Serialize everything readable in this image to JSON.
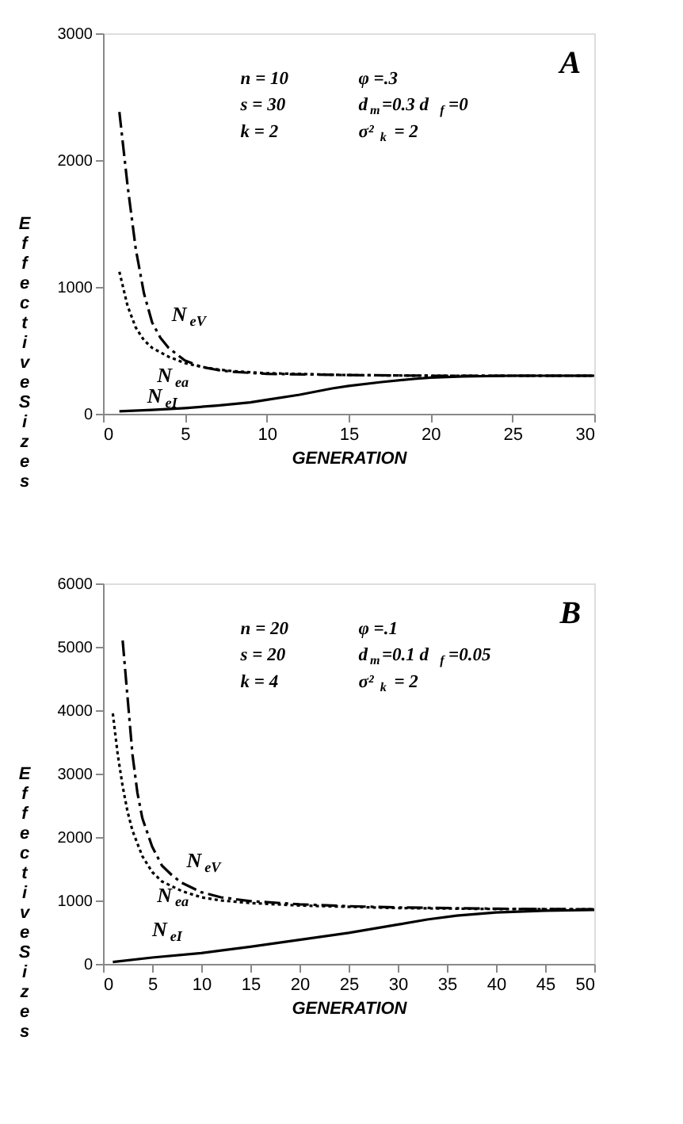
{
  "chart_data": [
    {
      "type": "line",
      "xlabel": "GENERATION",
      "ylabel": "Effective Sizes",
      "xlim": [
        0,
        30
      ],
      "xticks": [
        0,
        5,
        10,
        15,
        20,
        25,
        30
      ],
      "ylim": [
        0,
        3000
      ],
      "yticks": [
        0,
        1000,
        2000,
        3000
      ],
      "grid": false,
      "annotations": [
        "A",
        "n = 10",
        "φ =.3",
        "s = 30",
        "d$_{m}$=0.3  d$_{f}$=0",
        "k = 2",
        "σ²$_{k}$ = 2"
      ],
      "series": [
        {
          "name": "N$_{eV}$",
          "color": "#000000",
          "line_style": "dashed",
          "x": [
            1,
            1.5,
            2,
            2.5,
            3,
            3.5,
            4,
            5,
            6,
            7,
            8,
            10,
            15,
            20,
            25,
            30
          ],
          "values": [
            2380,
            1800,
            1300,
            950,
            720,
            600,
            520,
            420,
            370,
            345,
            330,
            315,
            305,
            300,
            300,
            300
          ]
        },
        {
          "name": "N$_{ea}$",
          "color": "#000000",
          "line_style": "dotted",
          "x": [
            1,
            1.5,
            2,
            2.5,
            3,
            4,
            5,
            6,
            7,
            8,
            10,
            15,
            20,
            30
          ],
          "values": [
            1120,
            850,
            680,
            580,
            520,
            450,
            400,
            370,
            350,
            335,
            320,
            305,
            300,
            300
          ]
        },
        {
          "name": "N$_{eI}$",
          "color": "#000000",
          "line_style": "solid",
          "x": [
            1,
            3,
            5,
            7,
            9,
            10,
            12,
            14,
            15,
            17,
            19,
            20,
            22,
            25,
            30
          ],
          "values": [
            20,
            30,
            45,
            65,
            90,
            110,
            150,
            200,
            220,
            250,
            275,
            285,
            295,
            300,
            300
          ]
        }
      ]
    },
    {
      "type": "line",
      "xlabel": "GENERATION",
      "ylabel": "Effective Sizes",
      "xlim": [
        0,
        50
      ],
      "xticks": [
        0,
        5,
        10,
        15,
        20,
        25,
        30,
        35,
        40,
        45,
        50
      ],
      "ylim": [
        0,
        6000
      ],
      "yticks": [
        0,
        1000,
        2000,
        3000,
        4000,
        5000,
        6000
      ],
      "grid": false,
      "annotations": [
        "B",
        "n = 20",
        "φ =.1",
        "s = 20",
        "d$_{m}$=0.1  d$_{f}$=0.05",
        "k = 4",
        "σ²$_{k}$ = 2"
      ],
      "series": [
        {
          "name": "N$_{eV}$",
          "color": "#000000",
          "line_style": "dashed",
          "x": [
            2,
            2.5,
            3,
            3.5,
            4,
            5,
            6,
            7,
            8,
            10,
            12,
            15,
            20,
            25,
            30,
            40,
            50
          ],
          "values": [
            5100,
            4200,
            3300,
            2700,
            2300,
            1850,
            1550,
            1400,
            1280,
            1130,
            1050,
            990,
            940,
            910,
            890,
            870,
            860
          ]
        },
        {
          "name": "N$_{ea}$",
          "color": "#000000",
          "line_style": "dotted",
          "x": [
            1,
            1.5,
            2,
            2.5,
            3,
            4,
            5,
            6,
            8,
            10,
            12,
            15,
            20,
            30,
            40,
            50
          ],
          "values": [
            3950,
            3300,
            2800,
            2400,
            2100,
            1700,
            1450,
            1300,
            1150,
            1050,
            1000,
            960,
            920,
            880,
            865,
            860
          ]
        },
        {
          "name": "N$_{eI}$",
          "color": "#000000",
          "line_style": "solid",
          "x": [
            1,
            5,
            10,
            12,
            15,
            20,
            25,
            30,
            33,
            36,
            40,
            45,
            50
          ],
          "values": [
            30,
            100,
            170,
            210,
            270,
            380,
            490,
            620,
            700,
            760,
            810,
            840,
            850
          ]
        }
      ]
    }
  ]
}
